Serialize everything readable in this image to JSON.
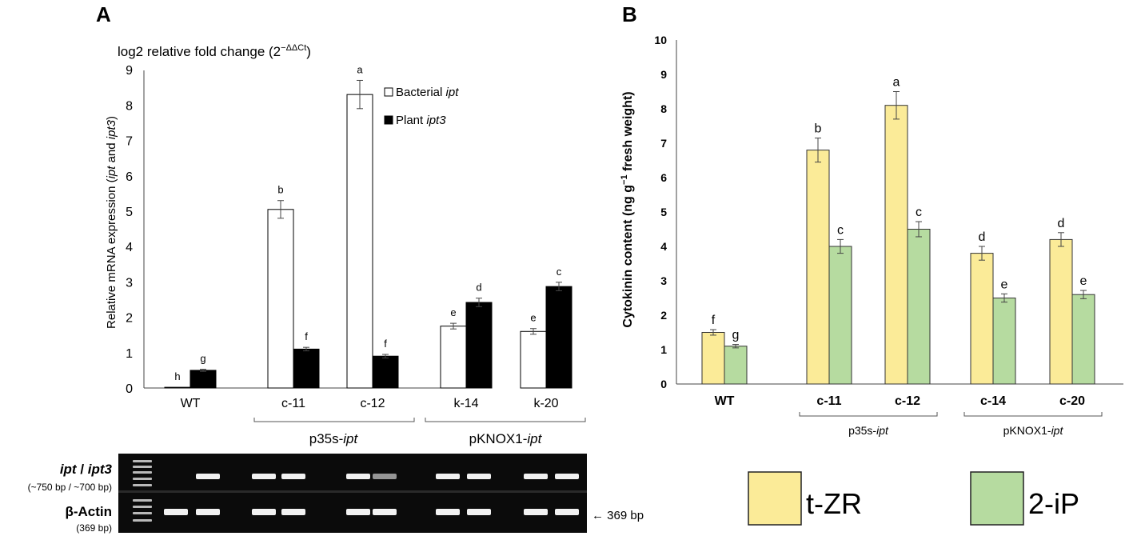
{
  "panel_a": {
    "letter": "A",
    "title_main": "log2 relative fold change (2",
    "title_sup": "−ΔΔCt",
    "title_close": ")",
    "gel": {
      "row1_label_a": "ipt",
      "row1_label_sep": " / ",
      "row1_label_b": "ipt3",
      "row1_sub": "(~750 bp / ~700 bp)",
      "row2_label": "β-Actin",
      "row2_sub": "(369 bp)",
      "marker_label": "← 369 bp"
    }
  },
  "panel_b": {
    "letter": "B",
    "legend": [
      {
        "name": "t-ZR",
        "color": "#fbeb98"
      },
      {
        "name": "2-iP",
        "color": "#b6dba0"
      }
    ]
  },
  "chart_data": [
    {
      "type": "bar",
      "id": "A",
      "title": "log2 relative fold change (2−ΔΔCt)",
      "ylabel": "Relative mRNA expression (ipt and ipt3)",
      "ylim": [
        0,
        9
      ],
      "yticks": [
        0,
        1,
        2,
        3,
        4,
        5,
        6,
        7,
        8,
        9
      ],
      "categories": [
        "WT",
        "c-11",
        "c-12",
        "k-14",
        "k-20"
      ],
      "groups": [
        {
          "label_plain": "p35s-",
          "label_italic": "ipt",
          "categories": [
            "c-11",
            "c-12"
          ]
        },
        {
          "label_plain": "pKNOX1-",
          "label_italic": "ipt",
          "categories": [
            "k-14",
            "k-20"
          ]
        }
      ],
      "series": [
        {
          "name_plain": "Bacterial ",
          "name_italic": "ipt",
          "fill": "#ffffff",
          "values": [
            0.02,
            5.05,
            8.3,
            1.75,
            1.6
          ],
          "errors": [
            0,
            0.25,
            0.4,
            0.08,
            0.08
          ],
          "letters": [
            "h",
            "b",
            "a",
            "e",
            "e"
          ]
        },
        {
          "name_plain": "Plant ",
          "name_italic": "ipt3",
          "fill": "#000000",
          "values": [
            0.5,
            1.1,
            0.9,
            2.42,
            2.87
          ],
          "errors": [
            0.03,
            0.05,
            0.05,
            0.12,
            0.12
          ],
          "letters": [
            "g",
            "f",
            "f",
            "d",
            "c"
          ]
        }
      ],
      "legend_position": "top-right"
    },
    {
      "type": "bar",
      "id": "B",
      "ylabel": "Cytokinin content (ng g−1 fresh weight)",
      "ylim": [
        0,
        10
      ],
      "yticks": [
        0,
        1,
        2,
        3,
        4,
        5,
        6,
        7,
        8,
        9,
        10
      ],
      "categories": [
        "WT",
        "c-11",
        "c-12",
        "c-14",
        "c-20"
      ],
      "groups": [
        {
          "label_plain": "p35s-",
          "label_italic": "ipt",
          "categories": [
            "c-11",
            "c-12"
          ]
        },
        {
          "label_plain": "pKNOX1-",
          "label_italic": "ipt",
          "categories": [
            "c-14",
            "c-20"
          ]
        }
      ],
      "series": [
        {
          "name": "t-ZR",
          "fill": "#fbeb98",
          "values": [
            1.5,
            6.8,
            8.1,
            3.8,
            4.2
          ],
          "errors": [
            0.08,
            0.35,
            0.4,
            0.2,
            0.2
          ],
          "letters": [
            "f",
            "b",
            "a",
            "d",
            "d"
          ]
        },
        {
          "name": "2-iP",
          "fill": "#b6dba0",
          "values": [
            1.1,
            4.0,
            4.5,
            2.5,
            2.6
          ],
          "errors": [
            0.05,
            0.2,
            0.22,
            0.12,
            0.12
          ],
          "letters": [
            "g",
            "c",
            "c",
            "e",
            "e"
          ]
        }
      ],
      "legend_position": "bottom"
    }
  ]
}
